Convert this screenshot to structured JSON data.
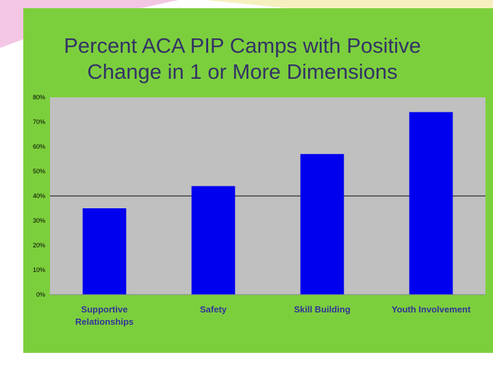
{
  "chart_data": {
    "type": "bar",
    "title": "Percent ACA PIP Camps with Positive\nChange in 1 or More Dimensions",
    "categories": [
      "Supportive\nRelationships",
      "Safety",
      "Skill Building",
      "Youth Involvement"
    ],
    "values": [
      35,
      44,
      57,
      74
    ],
    "ylim": [
      0,
      80
    ],
    "yticks": [
      "0%",
      "10%",
      "20%",
      "30%",
      "40%",
      "50%",
      "60%",
      "70%",
      "80%"
    ],
    "reference_line": 40,
    "grid": false,
    "legend": "none",
    "xlabel": "",
    "ylabel": "",
    "colors": {
      "bar": "#0000ee",
      "plot_background": "#c0c0c0",
      "slide_panel": "#7ccf3c",
      "title_text": "#333366",
      "category_text": "#333399"
    }
  }
}
